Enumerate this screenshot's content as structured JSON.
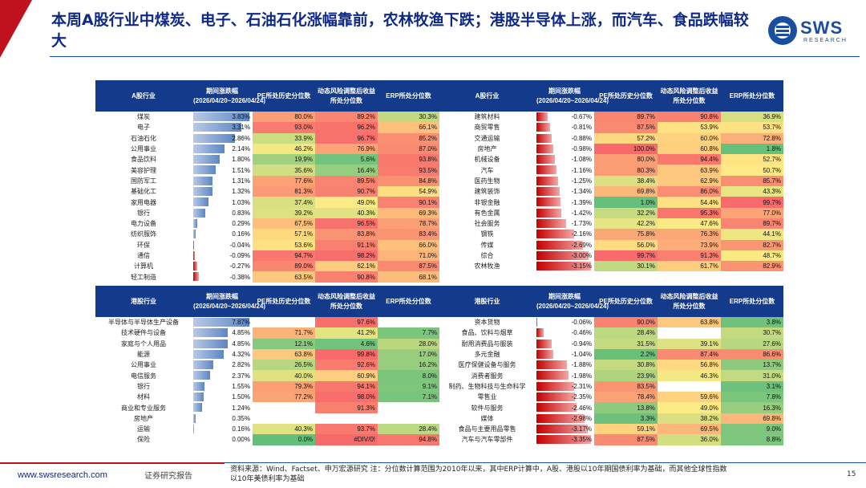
{
  "title": "本周A股行业中煤炭、电子、石油石化涨幅靠前，农林牧渔下跌；港股半导体上涨，而汽车、食品跌幅较大",
  "logo": {
    "text": "SWS",
    "sub": "RESEARCH"
  },
  "headers": {
    "a_industry": "A股行业",
    "hk_industry": "港股行业",
    "chg": "期间涨跌幅(2026/04/20~2026/04/24)",
    "pe": "PE所处历史分位数",
    "risk": "动态风险调整后收益所处分位数",
    "erp": "ERP所处分位数"
  },
  "a_left": [
    {
      "name": "煤炭",
      "chg": "3.83%",
      "v": 3.83,
      "pe": "80.0%",
      "risk": "89.2%",
      "erp": "30.3%"
    },
    {
      "name": "电子",
      "chg": "3.31%",
      "v": 3.31,
      "pe": "93.0%",
      "risk": "96.2%",
      "erp": "66.1%"
    },
    {
      "name": "石油石化",
      "chg": "2.86%",
      "v": 2.86,
      "pe": "33.9%",
      "risk": "96.7%",
      "erp": "85.2%"
    },
    {
      "name": "公用事业",
      "chg": "2.14%",
      "v": 2.14,
      "pe": "46.2%",
      "risk": "76.9%",
      "erp": "87.0%"
    },
    {
      "name": "食品饮料",
      "chg": "1.80%",
      "v": 1.8,
      "pe": "19.9%",
      "risk": "5.6%",
      "erp": "93.8%"
    },
    {
      "name": "美容护理",
      "chg": "1.51%",
      "v": 1.51,
      "pe": "35.6%",
      "risk": "16.4%",
      "erp": "93.5%"
    },
    {
      "name": "国防军工",
      "chg": "1.31%",
      "v": 1.31,
      "pe": "77.6%",
      "risk": "89.5%",
      "erp": "84.8%"
    },
    {
      "name": "基础化工",
      "chg": "1.32%",
      "v": 1.32,
      "pe": "81.3%",
      "risk": "90.7%",
      "erp": "54.9%"
    },
    {
      "name": "家用电器",
      "chg": "1.03%",
      "v": 1.03,
      "pe": "37.4%",
      "risk": "49.0%",
      "erp": "90.1%"
    },
    {
      "name": "银行",
      "chg": "0.83%",
      "v": 0.83,
      "pe": "39.2%",
      "risk": "40.3%",
      "erp": "69.3%"
    },
    {
      "name": "电力设备",
      "chg": "0.29%",
      "v": 0.29,
      "pe": "67.5%",
      "risk": "96.5%",
      "erp": "78.7%"
    },
    {
      "name": "纺织服饰",
      "chg": "0.16%",
      "v": 0.16,
      "pe": "57.1%",
      "risk": "83.8%",
      "erp": "83.4%"
    },
    {
      "name": "环保",
      "chg": "-0.04%",
      "v": -0.04,
      "pe": "53.6%",
      "risk": "91.1%",
      "erp": "66.0%"
    },
    {
      "name": "通信",
      "chg": "-0.09%",
      "v": -0.09,
      "pe": "94.7%",
      "risk": "98.2%",
      "erp": "71.0%"
    },
    {
      "name": "计算机",
      "chg": "-0.27%",
      "v": -0.27,
      "pe": "89.0%",
      "risk": "62.1%",
      "erp": "87.5%"
    },
    {
      "name": "轻工制造",
      "chg": "-0.38%",
      "v": -0.38,
      "pe": "63.5%",
      "risk": "90.8%",
      "erp": "68.1%"
    }
  ],
  "a_right": [
    {
      "name": "建筑材料",
      "chg": "-0.67%",
      "v": -0.67,
      "pe": "89.7%",
      "risk": "90.8%",
      "erp": "36.9%"
    },
    {
      "name": "商贸零售",
      "chg": "-0.81%",
      "v": -0.81,
      "pe": "87.5%",
      "risk": "53.9%",
      "erp": "53.7%"
    },
    {
      "name": "交通运输",
      "chg": "-0.88%",
      "v": -0.88,
      "pe": "57.2%",
      "risk": "60.0%",
      "erp": "72.8%"
    },
    {
      "name": "房地产",
      "chg": "-0.98%",
      "v": -0.98,
      "pe": "100.0%",
      "risk": "60.8%",
      "erp": "1.8%"
    },
    {
      "name": "机械设备",
      "chg": "-1.08%",
      "v": -1.08,
      "pe": "80.0%",
      "risk": "94.4%",
      "erp": "52.7%"
    },
    {
      "name": "汽车",
      "chg": "-1.16%",
      "v": -1.16,
      "pe": "80.3%",
      "risk": "63.9%",
      "erp": "50.7%"
    },
    {
      "name": "医药生物",
      "chg": "-1.25%",
      "v": -1.25,
      "pe": "38.4%",
      "risk": "62.9%",
      "erp": "85.7%"
    },
    {
      "name": "建筑装饰",
      "chg": "-1.34%",
      "v": -1.34,
      "pe": "69.8%",
      "risk": "86.0%",
      "erp": "43.3%"
    },
    {
      "name": "非银金融",
      "chg": "-1.39%",
      "v": -1.39,
      "pe": "1.0%",
      "risk": "54.4%",
      "erp": "99.7%"
    },
    {
      "name": "有色金属",
      "chg": "-1.42%",
      "v": -1.42,
      "pe": "32.2%",
      "risk": "95.3%",
      "erp": "77.0%"
    },
    {
      "name": "社会服务",
      "chg": "-1.73%",
      "v": -1.73,
      "pe": "42.2%",
      "risk": "47.6%",
      "erp": "89.7%"
    },
    {
      "name": "钢铁",
      "chg": "-2.16%",
      "v": -2.16,
      "pe": "75.8%",
      "risk": "76.3%",
      "erp": "44.1%"
    },
    {
      "name": "传媒",
      "chg": "-2.69%",
      "v": -2.69,
      "pe": "56.0%",
      "risk": "73.9%",
      "erp": "82.7%"
    },
    {
      "name": "综合",
      "chg": "-3.00%",
      "v": -3.0,
      "pe": "99.7%",
      "risk": "91.3%",
      "erp": "48.7%"
    },
    {
      "name": "农林牧渔",
      "chg": "-3.15%",
      "v": -3.15,
      "pe": "30.1%",
      "risk": "61.7%",
      "erp": "82.9%"
    }
  ],
  "hk_left": [
    {
      "name": "半导体与半导体生产设备",
      "chg": "7.87%",
      "v": 7.87,
      "pe": "",
      "risk": "97.6%",
      "erp": ""
    },
    {
      "name": "技术硬件与设备",
      "chg": "4.85%",
      "v": 4.85,
      "pe": "71.7%",
      "risk": "41.2%",
      "erp": "7.7%"
    },
    {
      "name": "家庭与个人用品",
      "chg": "4.85%",
      "v": 4.85,
      "pe": "12.1%",
      "risk": "4.6%",
      "erp": "28.0%"
    },
    {
      "name": "能源",
      "chg": "4.32%",
      "v": 4.32,
      "pe": "63.8%",
      "risk": "99.8%",
      "erp": "17.0%"
    },
    {
      "name": "公用事业",
      "chg": "2.82%",
      "v": 2.82,
      "pe": "26.5%",
      "risk": "92.6%",
      "erp": "16.2%"
    },
    {
      "name": "电信服务",
      "chg": "2.37%",
      "v": 2.37,
      "pe": "40.0%",
      "risk": "60.9%",
      "erp": "8.0%"
    },
    {
      "name": "银行",
      "chg": "1.55%",
      "v": 1.55,
      "pe": "79.3%",
      "risk": "94.1%",
      "erp": "9.1%"
    },
    {
      "name": "材料",
      "chg": "1.50%",
      "v": 1.5,
      "pe": "77.2%",
      "risk": "98.0%",
      "erp": "7.1%"
    },
    {
      "name": "商业和专业服务",
      "chg": "1.24%",
      "v": 1.24,
      "pe": "",
      "risk": "91.3%",
      "erp": ""
    },
    {
      "name": "房地产",
      "chg": "0.35%",
      "v": 0.35,
      "pe": "",
      "risk": "",
      "erp": ""
    },
    {
      "name": "运输",
      "chg": "0.16%",
      "v": 0.16,
      "pe": "40.3%",
      "risk": "93.7%",
      "erp": "28.4%"
    },
    {
      "name": "保险",
      "chg": "0.00%",
      "v": 0.0,
      "pe": "0.0%",
      "risk": "#DIV/0!",
      "erp": "94.8%"
    }
  ],
  "hk_right": [
    {
      "name": "资本货物",
      "chg": "-0.06%",
      "v": -0.06,
      "pe": "90.0%",
      "risk": "63.8%",
      "erp": "3.8%"
    },
    {
      "name": "食品、饮料与烟草",
      "chg": "-0.46%",
      "v": -0.46,
      "pe": "28.4%",
      "risk": "",
      "erp": "30.7%"
    },
    {
      "name": "耐用消费品与服装",
      "chg": "-0.94%",
      "v": -0.94,
      "pe": "31.5%",
      "risk": "39.1%",
      "erp": "27.6%"
    },
    {
      "name": "多元金融",
      "chg": "-1.04%",
      "v": -1.04,
      "pe": "2.2%",
      "risk": "87.4%",
      "erp": "86.6%"
    },
    {
      "name": "医疗保健设备与服务",
      "chg": "-1.88%",
      "v": -1.88,
      "pe": "30.8%",
      "risk": "56.8%",
      "erp": "13.7%"
    },
    {
      "name": "消费者服务",
      "chg": "-1.98%",
      "v": -1.98,
      "pe": "23.9%",
      "risk": "46.3%",
      "erp": "31.0%"
    },
    {
      "name": "制药、生物科技与生命科学",
      "chg": "-2.31%",
      "v": -2.31,
      "pe": "83.5%",
      "risk": "",
      "erp": "3.1%"
    },
    {
      "name": "零售业",
      "chg": "-2.35%",
      "v": -2.35,
      "pe": "78.4%",
      "risk": "59.6%",
      "erp": "7.8%"
    },
    {
      "name": "软件与服务",
      "chg": "-2.46%",
      "v": -2.46,
      "pe": "13.8%",
      "risk": "49.0%",
      "erp": "16.3%"
    },
    {
      "name": "媒体",
      "chg": "-2.98%",
      "v": -2.98,
      "pe": "3.3%",
      "risk": "38.2%",
      "erp": "69.8%"
    },
    {
      "name": "食品与主要用品零售",
      "chg": "-3.17%",
      "v": -3.17,
      "pe": "59.1%",
      "risk": "69.5%",
      "erp": "9.0%"
    },
    {
      "name": "汽车与汽车零部件",
      "chg": "-3.35%",
      "v": -3.35,
      "pe": "87.5%",
      "risk": "36.0%",
      "erp": "8.8%"
    }
  ],
  "footer": {
    "site": "www.swsresearch.com",
    "report": "证券研究报告",
    "source": "资料来源：Wind、Factset、申万宏源研究 注：分位数计算范围为2010年以来，其中ERP计算中，A股、港股以10年期国债利率为基础，而其他全球性指数以10年美债利率为基础",
    "page": "15"
  }
}
